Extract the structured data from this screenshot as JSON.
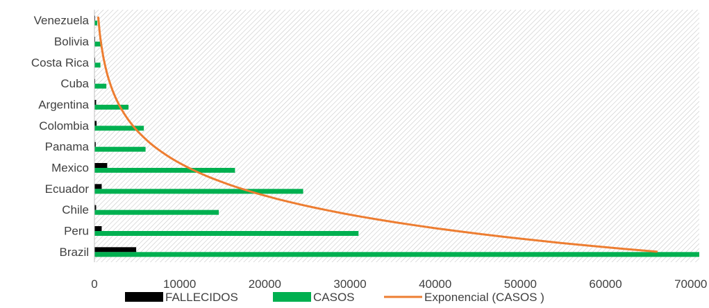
{
  "chart_data": {
    "type": "bar",
    "orientation": "horizontal",
    "categories": [
      "Brazil",
      "Peru",
      "Chile",
      "Ecuador",
      "Mexico",
      "Panama",
      "Colombia",
      "Argentina",
      "Cuba",
      "Costa Rica",
      "Bolivia",
      "Venezuela"
    ],
    "series": [
      {
        "name": "FALLECIDOS",
        "color": "#000000",
        "values": [
          4900,
          850,
          200,
          850,
          1500,
          150,
          250,
          200,
          60,
          10,
          50,
          10
        ]
      },
      {
        "name": "CASOS",
        "color": "#00b050",
        "values": [
          71000,
          31000,
          14600,
          24500,
          16500,
          6000,
          5800,
          4000,
          1400,
          700,
          900,
          330
        ]
      }
    ],
    "trendline": {
      "name": "Exponencial (CASOS )",
      "color": "#ed7d31",
      "type": "exponential",
      "start_value": 66000,
      "end_value": 450
    },
    "xlim": [
      0,
      71000
    ],
    "x_ticks": [
      "0",
      "10000",
      "20000",
      "30000",
      "40000",
      "50000",
      "60000",
      "70000"
    ],
    "x_tick_values": [
      0,
      10000,
      20000,
      30000,
      40000,
      50000,
      60000,
      70000
    ],
    "plot_background": "hatched",
    "legend_position": "bottom",
    "title": "",
    "xlabel": "",
    "ylabel": ""
  }
}
